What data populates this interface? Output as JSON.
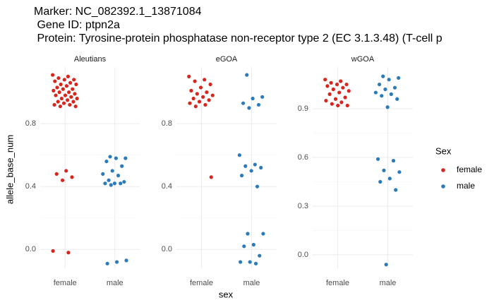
{
  "header": {
    "lines": [
      "Marker: NC_082392.1_13871084",
      " Gene ID: ptpn2a",
      " Protein: Tyrosine-protein phosphatase non-receptor type 2 (EC 3.1.3.48) (T-cell p"
    ]
  },
  "x_label": "sex",
  "y_label": "allele_base_num",
  "legend_title": "Sex",
  "chart_data": [
    {
      "type": "scatter",
      "title": "Aleutians",
      "categories": [
        "female",
        "male"
      ],
      "ylim": [
        -0.12,
        1.16
      ],
      "yticks": [
        {
          "value": 0,
          "label": "0.0"
        },
        0.4,
        0.8
      ],
      "grid": true,
      "series": [
        {
          "name": "female",
          "color": "#d7261e",
          "values": [
            1.11,
            1.1,
            1.09,
            1.08,
            1.08,
            1.07,
            1.06,
            1.05,
            1.05,
            1.04,
            1.03,
            1.02,
            1.02,
            1.01,
            1.0,
            1.0,
            0.99,
            0.98,
            0.98,
            0.97,
            0.96,
            0.96,
            0.95,
            0.94,
            0.94,
            0.93,
            0.92,
            0.92,
            0.91,
            0.91,
            0.5,
            0.48,
            0.46,
            0.44,
            -0.01,
            -0.02
          ]
        },
        {
          "name": "male",
          "color": "#2b7bba",
          "values": [
            0.59,
            0.58,
            0.58,
            0.56,
            0.53,
            0.5,
            0.48,
            0.47,
            0.44,
            0.43,
            0.42,
            0.42,
            0.42,
            0.41,
            -0.07,
            -0.08,
            -0.09
          ]
        }
      ]
    },
    {
      "type": "scatter",
      "title": "eGOA",
      "categories": [
        "female",
        "male"
      ],
      "ylim": [
        -0.12,
        1.16
      ],
      "yticks": [
        {
          "value": 0,
          "label": "0.0"
        },
        0.4,
        0.8
      ],
      "grid": true,
      "series": [
        {
          "name": "female",
          "color": "#d7261e",
          "values": [
            1.1,
            1.08,
            1.07,
            1.05,
            1.03,
            1.01,
            1.0,
            0.99,
            0.98,
            0.97,
            0.96,
            0.95,
            0.94,
            0.93,
            0.92,
            0.91,
            0.46
          ]
        },
        {
          "name": "male",
          "color": "#2b7bba",
          "values": [
            1.11,
            0.97,
            0.96,
            0.93,
            0.92,
            0.9,
            0.6,
            0.54,
            0.53,
            0.52,
            0.5,
            0.47,
            0.4,
            0.1,
            0.1,
            0.03,
            0.02,
            -0.04,
            -0.08,
            -0.08,
            -0.09
          ]
        }
      ]
    },
    {
      "type": "scatter",
      "title": "wGOA",
      "categories": [
        "female",
        "male"
      ],
      "ylim": [
        -0.083,
        1.157
      ],
      "yticks": [
        {
          "value": 0,
          "label": "0.0"
        },
        0.3,
        0.6,
        0.9
      ],
      "grid": true,
      "series": [
        {
          "name": "female",
          "color": "#d7261e",
          "values": [
            1.08,
            1.07,
            1.06,
            1.05,
            1.05,
            1.04,
            1.03,
            1.02,
            1.01,
            1.0,
            0.99,
            0.97,
            0.96,
            0.95,
            0.94,
            0.93,
            0.92,
            0.92
          ]
        },
        {
          "name": "male",
          "color": "#2b7bba",
          "values": [
            1.1,
            1.09,
            1.08,
            1.05,
            1.03,
            1.02,
            1.0,
            0.99,
            0.98,
            0.96,
            0.91,
            0.59,
            0.58,
            0.52,
            0.51,
            0.47,
            0.45,
            0.4,
            -0.06
          ]
        }
      ]
    }
  ]
}
